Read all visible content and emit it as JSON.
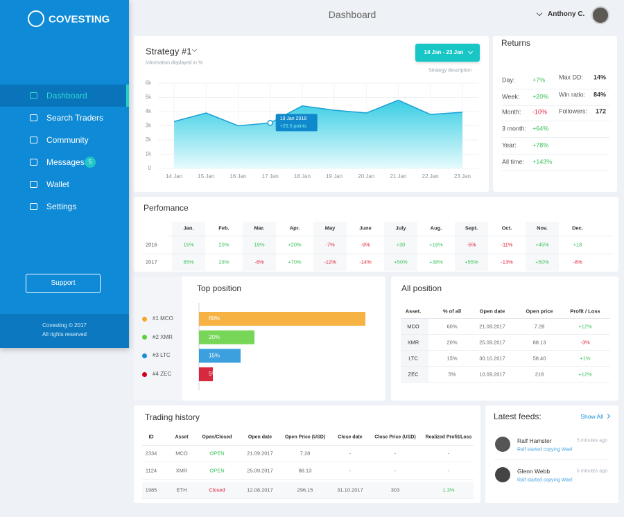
{
  "sidebar": {
    "logo": "COVESTING",
    "menu": [
      "Dashboard",
      "Search Traders",
      "Community",
      "Messages",
      "Wallet",
      "Settings"
    ],
    "badge": "5",
    "support": "Support",
    "footer": [
      "Covesting © 2017",
      "All rights reserved"
    ]
  },
  "header": {
    "title": "Dashboard",
    "user": "Anthony C."
  },
  "strategy": {
    "title": "Strategy #1",
    "subtitle": "Information displayed in %",
    "date_range": "14 Jan - 23 Jan",
    "link": "Strategy description",
    "chart_data": {
      "type": "area",
      "categories": [
        "14 Jan",
        "15 Jan",
        "16 Jan",
        "17 Jan",
        "18 Jan",
        "19 Jan",
        "20 Jan",
        "21 Jan",
        "22 Jan",
        "23 Jan"
      ],
      "values": [
        3300,
        3900,
        3000,
        3200,
        4400,
        4100,
        3900,
        4800,
        3800,
        3950
      ],
      "ylim": [
        0,
        6000
      ],
      "yticks": [
        0,
        {
          "value": 1000,
          "label": "1k"
        },
        {
          "value": 2000,
          "label": "2k"
        },
        {
          "value": 3000,
          "label": "3k"
        },
        {
          "value": 4000,
          "label": "4k"
        },
        {
          "value": 5000,
          "label": "5k"
        },
        {
          "value": 6000,
          "label": "6k"
        }
      ],
      "color": "#1a9fd6",
      "grid": true,
      "annotation": {
        "title": "19 Jan 2018",
        "text": "+20.5 points"
      }
    }
  },
  "returns": {
    "title": "Returns",
    "rows": [
      [
        "Day:",
        "+7%"
      ],
      [
        "Week:",
        "+20%"
      ],
      [
        "Month:",
        "-10%"
      ],
      [
        "3 month:",
        "+64%"
      ],
      [
        "Year:",
        "+78%"
      ],
      [
        "All time:",
        "+143%"
      ]
    ],
    "stats": [
      [
        "Max DD:",
        "14%"
      ],
      [
        "Win ratio:",
        "84%"
      ],
      [
        "Followers:",
        "172"
      ]
    ]
  },
  "performance": {
    "title": "Perfomance",
    "columns": [
      "Jan.",
      "Feb.",
      "Mar.",
      "Apr.",
      "May",
      "June",
      "July",
      "Aug.",
      "Sept.",
      "Oct.",
      "Nov.",
      "Dec."
    ],
    "rows": [
      {
        "year": "2016",
        "values": [
          "15%",
          "20%",
          "19%",
          "+20%",
          "-7%",
          "-9%",
          "+30",
          "+16%",
          "-5%",
          "-11%",
          "+45%",
          "+18"
        ]
      },
      {
        "year": "2017",
        "values": [
          "65%",
          "29%",
          "-6%",
          "+70%",
          "-12%",
          "-14%",
          "+50%",
          "+38%",
          "+55%",
          "-13%",
          "+50%",
          "-8%"
        ]
      }
    ]
  },
  "top_position": {
    "title": "Top position",
    "chart_data": {
      "type": "bar",
      "categories": [
        "#1 MCO",
        "#2 XMR",
        "#3 LTC",
        "#4 ZEC"
      ],
      "values": [
        60,
        20,
        15,
        5
      ],
      "value_labels": [
        "60%",
        "20%",
        "15%",
        "5%"
      ],
      "colors": [
        "#f5a623",
        "#5fcf3a",
        "#1a8fd8",
        "#d0021b"
      ]
    }
  },
  "all_position": {
    "title": "All position",
    "columns": [
      "Asset.",
      "% of all",
      "Open date",
      "Open  price",
      "Profit / Loss"
    ],
    "rows": [
      [
        "MCO",
        "60%",
        "21.09.2017",
        "7.28",
        "+12%"
      ],
      [
        "XMR",
        "20%",
        "25.09.2017",
        "88.13",
        "-3%"
      ],
      [
        "LTC",
        "15%",
        "30.10.2017",
        "58.40",
        "+1%"
      ],
      [
        "ZEC",
        "5%",
        "10.09.2017",
        "218",
        "+12%"
      ]
    ]
  },
  "trading_history": {
    "title": "Trading history",
    "columns": [
      "ID",
      "Asset",
      "Open/Closed",
      "Open date",
      "Open Price (USD)",
      "Close date",
      "Close Price (USD)",
      "Realized Profit/Loss"
    ],
    "rows": [
      [
        "2334",
        "MCO",
        "OPEN",
        "21.09.2017",
        "7.28",
        "-",
        "-",
        "-"
      ],
      [
        "1124",
        "XMR",
        "OPEN",
        "25.09.2017",
        "88.13",
        "-",
        "-",
        "-"
      ],
      [
        "1985",
        "ETH",
        "Closed",
        "12.08.2017",
        "296.15",
        "31.10.2017",
        "303",
        "1.3%"
      ]
    ]
  },
  "feeds": {
    "title": "Latest feeds:",
    "link": "Show All",
    "items": [
      {
        "name": "Ralf Hamster",
        "time": "5 minutes ago",
        "text": "Ralf started copying Wael"
      },
      {
        "name": "Glenn Webb",
        "time": "5 minutes ago",
        "text": "Ralf started copying Wael"
      }
    ]
  }
}
